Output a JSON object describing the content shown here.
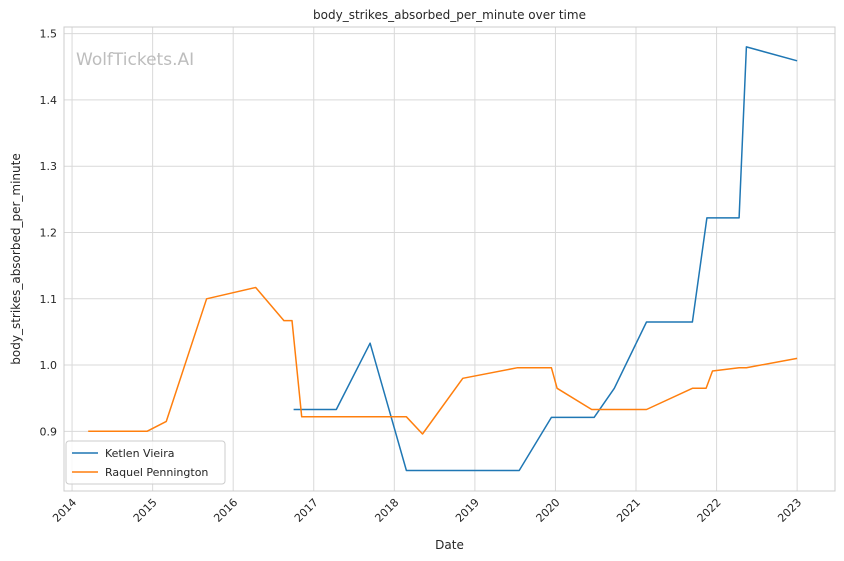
{
  "chart_data": {
    "type": "line",
    "title": "body_strikes_absorbed_per_minute over time",
    "xlabel": "Date",
    "ylabel": "body_strikes_absorbed_per_minute",
    "watermark": "WolfTickets.AI",
    "xlim": [
      2013.9,
      2023.47
    ],
    "ylim": [
      0.81,
      1.51
    ],
    "x_ticks": [
      2014,
      2015,
      2016,
      2017,
      2018,
      2019,
      2020,
      2021,
      2022,
      2023
    ],
    "x_tick_labels": [
      "2014",
      "2015",
      "2016",
      "2017",
      "2018",
      "2019",
      "2020",
      "2021",
      "2022",
      "2023"
    ],
    "y_ticks": [
      0.9,
      1.0,
      1.1,
      1.2,
      1.3,
      1.4,
      1.5
    ],
    "y_tick_labels": [
      "0.9",
      "1.0",
      "1.1",
      "1.2",
      "1.3",
      "1.4",
      "1.5"
    ],
    "grid": true,
    "legend_position": "lower-left",
    "series": [
      {
        "name": "Ketlen Vieira",
        "color": "#1f77b4",
        "x": [
          2016.75,
          2017.28,
          2017.7,
          2018.15,
          2019.55,
          2019.95,
          2020.48,
          2020.73,
          2021.13,
          2021.7,
          2021.88,
          2022.28,
          2022.37,
          2023.0
        ],
        "y": [
          0.933,
          0.933,
          1.033,
          0.841,
          0.841,
          0.921,
          0.921,
          0.965,
          1.065,
          1.065,
          1.222,
          1.222,
          1.48,
          1.459
        ]
      },
      {
        "name": "Raquel Pennington",
        "color": "#ff7f0e",
        "x": [
          2014.2,
          2014.93,
          2015.17,
          2015.67,
          2016.28,
          2016.63,
          2016.73,
          2016.85,
          2018.15,
          2018.35,
          2018.85,
          2019.53,
          2019.95,
          2020.02,
          2020.45,
          2020.73,
          2021.13,
          2021.7,
          2021.87,
          2021.95,
          2022.28,
          2022.37,
          2023.0
        ],
        "y": [
          0.9,
          0.9,
          0.915,
          1.1,
          1.117,
          1.067,
          1.067,
          0.922,
          0.922,
          0.896,
          0.98,
          0.996,
          0.996,
          0.965,
          0.933,
          0.933,
          0.933,
          0.965,
          0.965,
          0.991,
          0.996,
          0.996,
          1.01
        ]
      }
    ]
  }
}
